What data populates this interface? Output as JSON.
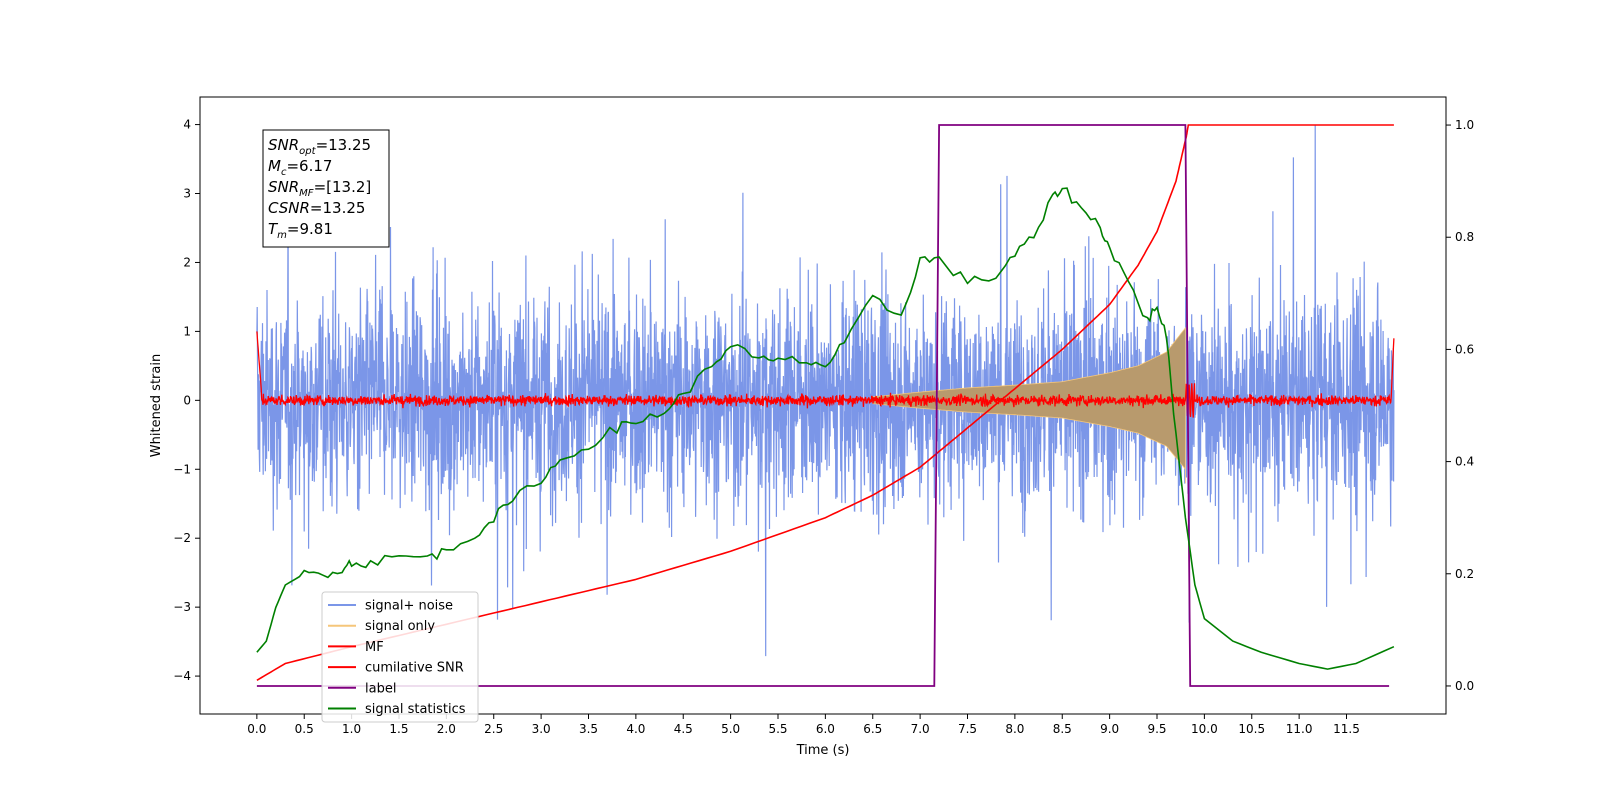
{
  "chart_data": {
    "type": "line",
    "xlabel": "Time (s)",
    "ylabel": "Whitened strain",
    "xlim": [
      -0.6,
      12.55
    ],
    "ylim": [
      -4.55,
      4.4
    ],
    "ylim_right": [
      -0.05,
      1.05
    ],
    "x_ticks": [
      0.0,
      0.5,
      1.0,
      1.5,
      2.0,
      2.5,
      3.0,
      3.5,
      4.0,
      4.5,
      5.0,
      5.5,
      6.0,
      6.5,
      7.0,
      7.5,
      8.0,
      8.5,
      9.0,
      9.5,
      10.0,
      10.5,
      11.0,
      11.5
    ],
    "x_tick_labels": [
      "0.0",
      "0.5",
      "1.0",
      "1.5",
      "2.0",
      "2.5",
      "3.0",
      "3.5",
      "4.0",
      "4.5",
      "5.0",
      "5.5",
      "6.0",
      "6.5",
      "7.0",
      "7.5",
      "8.0",
      "8.5",
      "9.0",
      "9.5",
      "10.0",
      "10.5",
      "11.0",
      "11.5"
    ],
    "y_ticks": [
      4,
      3,
      2,
      1,
      0,
      -1,
      -2,
      -3,
      -4
    ],
    "y_tick_labels": [
      "4",
      "3",
      "2",
      "1",
      "0",
      "−1",
      "−2",
      "−3",
      "−4"
    ],
    "y_right_ticks": [
      1.0,
      0.8,
      0.6,
      0.4,
      0.2,
      0.0
    ],
    "y_right_tick_labels": [
      "1.0",
      "0.8",
      "0.6",
      "0.4",
      "0.2",
      "0.0"
    ],
    "grid": false,
    "legend_position": "lower-left",
    "annotation": {
      "lines": [
        {
          "base": "SNR",
          "sub": "opt",
          "rest": "=13.25"
        },
        {
          "base": "M",
          "sub": "c",
          "rest": "=6.17"
        },
        {
          "base": "SNR",
          "sub": "MF",
          "rest": "=[13.2]"
        },
        {
          "base": "CSNR",
          "sub": "",
          "rest": "=13.25"
        },
        {
          "base": "T",
          "sub": "m",
          "rest": "=9.81"
        }
      ]
    },
    "series": [
      {
        "name": "signal+ noise",
        "color": "#7b96e8",
        "axis": "left",
        "noise_band": [
          -3.0,
          3.3
        ],
        "x_range": [
          0.0,
          12.0
        ]
      },
      {
        "name": "signal only",
        "color": "#f5c67a",
        "axis": "left",
        "envelope": [
          [
            6.5,
            0.05
          ],
          [
            7.0,
            0.12
          ],
          [
            7.5,
            0.18
          ],
          [
            8.0,
            0.22
          ],
          [
            8.5,
            0.27
          ],
          [
            9.0,
            0.4
          ],
          [
            9.3,
            0.5
          ],
          [
            9.6,
            0.7
          ],
          [
            9.8,
            1.05
          ]
        ]
      },
      {
        "name": "MF",
        "color": "#ff0000",
        "axis": "left",
        "x_range": [
          0.0,
          12.0
        ],
        "band": [
          -0.1,
          0.15
        ]
      },
      {
        "name": "cumilative SNR",
        "color": "#ff0000",
        "axis": "right",
        "x": [
          0.0,
          0.3,
          1.0,
          2.0,
          3.0,
          4.0,
          5.0,
          6.0,
          6.5,
          7.0,
          7.5,
          8.0,
          8.5,
          9.0,
          9.3,
          9.5,
          9.7,
          9.81,
          9.83,
          12.0
        ],
        "values": [
          0.01,
          0.04,
          0.07,
          0.11,
          0.15,
          0.19,
          0.24,
          0.3,
          0.34,
          0.39,
          0.46,
          0.53,
          0.6,
          0.68,
          0.75,
          0.81,
          0.9,
          0.98,
          1.0,
          1.0
        ]
      },
      {
        "name": "label",
        "color": "#800080",
        "axis": "right",
        "x": [
          0.0,
          7.15,
          7.2,
          9.8,
          9.85,
          11.95
        ],
        "values": [
          0.0,
          0.0,
          1.0,
          1.0,
          0.0,
          0.0
        ]
      },
      {
        "name": "signal statistics",
        "color": "#008000",
        "axis": "right",
        "x": [
          0.0,
          0.1,
          0.2,
          0.3,
          0.5,
          0.7,
          0.9,
          1.0,
          1.2,
          1.5,
          1.8,
          2.0,
          2.3,
          2.5,
          2.7,
          3.0,
          3.2,
          3.5,
          3.8,
          4.0,
          4.3,
          4.5,
          4.8,
          5.0,
          5.3,
          5.5,
          5.8,
          6.0,
          6.2,
          6.5,
          6.8,
          7.0,
          7.2,
          7.5,
          7.8,
          8.0,
          8.2,
          8.4,
          8.5,
          8.7,
          8.9,
          9.0,
          9.2,
          9.4,
          9.5,
          9.6,
          9.7,
          9.8,
          9.9,
          10.0,
          10.3,
          10.6,
          11.0,
          11.3,
          11.6,
          12.0
        ],
        "values": [
          0.06,
          0.08,
          0.14,
          0.18,
          0.2,
          0.2,
          0.21,
          0.22,
          0.22,
          0.23,
          0.23,
          0.24,
          0.27,
          0.3,
          0.33,
          0.37,
          0.4,
          0.43,
          0.46,
          0.47,
          0.49,
          0.52,
          0.57,
          0.61,
          0.58,
          0.58,
          0.58,
          0.57,
          0.61,
          0.69,
          0.66,
          0.76,
          0.76,
          0.72,
          0.73,
          0.77,
          0.8,
          0.87,
          0.89,
          0.85,
          0.82,
          0.78,
          0.72,
          0.65,
          0.68,
          0.62,
          0.45,
          0.3,
          0.18,
          0.12,
          0.08,
          0.06,
          0.04,
          0.03,
          0.04,
          0.07
        ]
      }
    ]
  }
}
